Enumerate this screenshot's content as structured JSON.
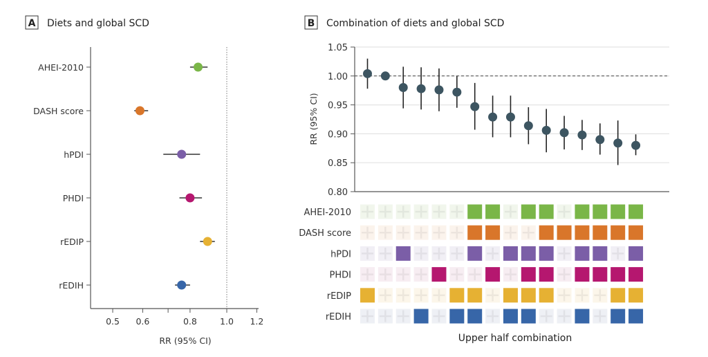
{
  "chart_data": [
    {
      "type": "scatter",
      "panel_label": "A",
      "title": "Diets and global SCD",
      "xlabel": "RR (95% CI)",
      "xscale": "log",
      "xlim": [
        0.44,
        1.2
      ],
      "xticks": [
        0.5,
        0.6,
        0.7,
        0.8,
        1.0,
        1.2
      ],
      "xtick_labels": [
        "0.5",
        "0.6",
        "",
        "0.8",
        "1.0",
        "1.2"
      ],
      "reference_line": 1.0,
      "categories": [
        "AHEI-2010",
        "DASH score",
        "hPDI",
        "PHDI",
        "rEDIP",
        "rEDIH"
      ],
      "rr": [
        0.84,
        0.59,
        0.76,
        0.8,
        0.89,
        0.76
      ],
      "ci_low": [
        0.8,
        0.57,
        0.68,
        0.75,
        0.85,
        0.73
      ],
      "ci_high": [
        0.89,
        0.62,
        0.85,
        0.86,
        0.93,
        0.8
      ],
      "colors": [
        "#7ab648",
        "#d9762a",
        "#7b5ea7",
        "#b5176f",
        "#e6b133",
        "#3766a8"
      ]
    },
    {
      "type": "scatter",
      "panel_label": "B",
      "title": "Combination of diets and global SCD",
      "ylabel": "RR (95% CI)",
      "xlabel": "Upper half combination",
      "ylim": [
        0.8,
        1.05
      ],
      "yticks": [
        "0.80",
        "0.85",
        "0.90",
        "0.95",
        "1.00",
        "1.05"
      ],
      "grid": true,
      "reference_line": 1.0,
      "point_color": "#3d5561",
      "rr": [
        1.004,
        1.0,
        0.98,
        0.978,
        0.976,
        0.972,
        0.947,
        0.929,
        0.929,
        0.914,
        0.906,
        0.902,
        0.898,
        0.89,
        0.884,
        0.88
      ],
      "ci_low": [
        0.978,
        null,
        0.944,
        0.942,
        0.939,
        0.945,
        0.907,
        0.894,
        0.894,
        0.882,
        0.868,
        0.873,
        0.872,
        0.864,
        0.846,
        0.863
      ],
      "ci_high": [
        1.03,
        null,
        1.016,
        1.015,
        1.013,
        1.0,
        0.988,
        0.966,
        0.966,
        0.946,
        0.943,
        0.931,
        0.924,
        0.918,
        0.923,
        0.899
      ],
      "matrix": [
        {
          "name": "AHEI-2010",
          "color": "#7ab648",
          "tint": "#f1f6ec",
          "cells": [
            0,
            0,
            0,
            0,
            0,
            0,
            1,
            1,
            0,
            1,
            1,
            0,
            1,
            1,
            1,
            1
          ]
        },
        {
          "name": "DASH score",
          "color": "#d9762a",
          "tint": "#fbf3ec",
          "cells": [
            0,
            0,
            0,
            0,
            0,
            0,
            1,
            1,
            0,
            0,
            1,
            1,
            1,
            1,
            1,
            1
          ]
        },
        {
          "name": "hPDI",
          "color": "#7b5ea7",
          "tint": "#f1eff5",
          "cells": [
            0,
            0,
            1,
            0,
            0,
            0,
            1,
            0,
            1,
            1,
            1,
            0,
            1,
            1,
            0,
            1
          ]
        },
        {
          "name": "PHDI",
          "color": "#b5176f",
          "tint": "#f7edf2",
          "cells": [
            0,
            0,
            0,
            0,
            1,
            0,
            0,
            1,
            0,
            1,
            1,
            0,
            1,
            1,
            1,
            1
          ]
        },
        {
          "name": "rEDIP",
          "color": "#e6b133",
          "tint": "#fcf6ea",
          "cells": [
            1,
            0,
            0,
            0,
            0,
            1,
            1,
            0,
            1,
            1,
            1,
            0,
            0,
            0,
            1,
            1
          ]
        },
        {
          "name": "rEDIH",
          "color": "#3766a8",
          "tint": "#eef0f5",
          "cells": [
            0,
            0,
            0,
            1,
            0,
            1,
            1,
            0,
            1,
            1,
            0,
            0,
            1,
            0,
            1,
            1
          ]
        }
      ]
    }
  ]
}
